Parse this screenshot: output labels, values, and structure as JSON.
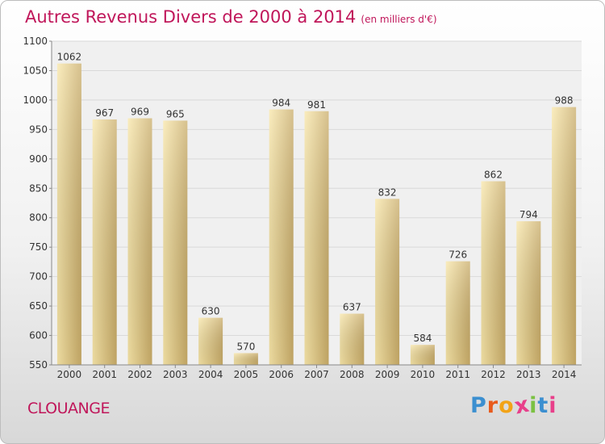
{
  "title": "Autres Revenus Divers de 2000 à 2014",
  "subtitle": "(en milliers d'€)",
  "location": "CLOUANGE",
  "logo": {
    "letters": [
      "P",
      "r",
      "o",
      "x",
      "i",
      "t",
      "i"
    ],
    "colors": [
      "#3b8fd0",
      "#e85a1c",
      "#f2a317",
      "#e83f8a",
      "#7bc142",
      "#3b8fd0",
      "#e83f8a"
    ]
  },
  "colors": {
    "title": "#c0165a",
    "bar_light": "#f7e3a3",
    "bar_dark": "#cdb06c",
    "grid": "#d9d9d9"
  },
  "chart_data": {
    "type": "bar",
    "title": "Autres Revenus Divers de 2000 à 2014",
    "subtitle": "(en milliers d'€)",
    "categories": [
      "2000",
      "2001",
      "2002",
      "2003",
      "2004",
      "2005",
      "2006",
      "2007",
      "2008",
      "2009",
      "2010",
      "2011",
      "2012",
      "2013",
      "2014"
    ],
    "values": [
      1062,
      967,
      969,
      965,
      630,
      570,
      984,
      981,
      637,
      832,
      584,
      726,
      862,
      794,
      988
    ],
    "ylim": [
      550,
      1100
    ],
    "yticks": [
      550,
      600,
      650,
      700,
      750,
      800,
      850,
      900,
      950,
      1000,
      1050,
      1100
    ],
    "grid": true
  }
}
